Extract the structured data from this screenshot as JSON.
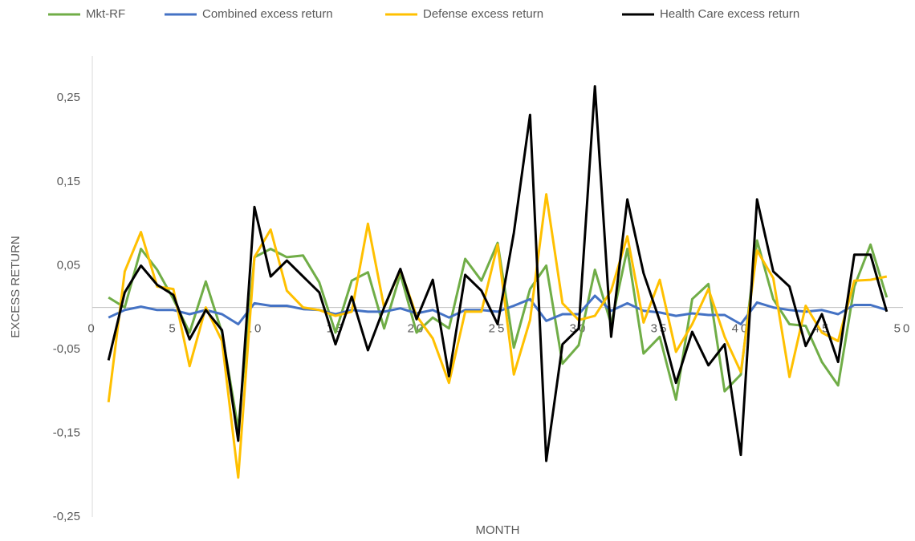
{
  "chart_data": {
    "type": "line",
    "x_label": "MONTH",
    "y_label": "EXCESS RETURN",
    "x": [
      1,
      2,
      3,
      4,
      5,
      6,
      7,
      8,
      9,
      10,
      11,
      12,
      13,
      14,
      15,
      16,
      17,
      18,
      19,
      20,
      21,
      22,
      23,
      24,
      25,
      26,
      27,
      28,
      29,
      30,
      31,
      32,
      33,
      34,
      35,
      36,
      37,
      38,
      39,
      40,
      41,
      42,
      43,
      44,
      45,
      46,
      47,
      48,
      49
    ],
    "series": [
      {
        "name": "Mkt-RF",
        "color": "#70ad47",
        "values": [
          0.012,
          0.0,
          0.07,
          0.045,
          0.01,
          -0.03,
          0.031,
          -0.03,
          -0.145,
          0.06,
          0.07,
          0.06,
          0.062,
          0.03,
          -0.03,
          0.032,
          0.042,
          -0.025,
          0.04,
          -0.03,
          -0.012,
          -0.025,
          0.058,
          0.032,
          0.077,
          -0.048,
          0.022,
          0.05,
          -0.067,
          -0.045,
          0.045,
          -0.02,
          0.07,
          -0.055,
          -0.035,
          -0.11,
          0.01,
          0.028,
          -0.1,
          -0.08,
          0.08,
          0.01,
          -0.02,
          -0.022,
          -0.065,
          -0.093,
          0.025,
          0.075,
          0.012
        ]
      },
      {
        "name": "Combined excess return",
        "color": "#4472c4",
        "values": [
          -0.012,
          -0.003,
          0.001,
          -0.003,
          -0.003,
          -0.008,
          -0.003,
          -0.008,
          -0.02,
          0.005,
          0.002,
          0.002,
          -0.002,
          -0.003,
          -0.008,
          -0.003,
          -0.005,
          -0.005,
          -0.001,
          -0.007,
          -0.003,
          -0.012,
          -0.003,
          -0.003,
          -0.005,
          0.002,
          0.01,
          -0.016,
          -0.008,
          -0.008,
          0.014,
          -0.004,
          0.005,
          -0.004,
          -0.006,
          -0.01,
          -0.007,
          -0.009,
          -0.009,
          -0.02,
          0.006,
          0.0,
          -0.003,
          -0.005,
          -0.003,
          -0.008,
          0.003,
          0.003,
          -0.003
        ]
      },
      {
        "name": "Defense excess return",
        "color": "#ffc000",
        "values": [
          -0.113,
          0.043,
          0.09,
          0.025,
          0.022,
          -0.07,
          0.0,
          -0.04,
          -0.203,
          0.06,
          0.093,
          0.02,
          0.0,
          -0.003,
          -0.01,
          -0.005,
          0.1,
          0.0,
          0.045,
          -0.01,
          -0.037,
          -0.09,
          -0.005,
          -0.005,
          0.075,
          -0.08,
          -0.015,
          0.135,
          0.005,
          -0.015,
          -0.01,
          0.02,
          0.085,
          -0.018,
          0.033,
          -0.053,
          -0.02,
          0.022,
          -0.035,
          -0.077,
          0.068,
          0.035,
          -0.083,
          0.002,
          -0.03,
          -0.04,
          0.032,
          0.033,
          0.037
        ]
      },
      {
        "name": "Health Care excess return",
        "color": "#000000",
        "values": [
          -0.063,
          0.018,
          0.05,
          0.027,
          0.015,
          -0.038,
          -0.003,
          -0.027,
          -0.159,
          0.12,
          0.037,
          0.056,
          0.037,
          0.018,
          -0.044,
          0.013,
          -0.051,
          0.0,
          0.046,
          -0.014,
          0.033,
          -0.082,
          0.039,
          0.02,
          -0.02,
          0.089,
          0.23,
          -0.183,
          -0.044,
          -0.025,
          0.264,
          -0.035,
          0.129,
          0.041,
          -0.016,
          -0.09,
          -0.029,
          -0.069,
          -0.044,
          -0.176,
          0.129,
          0.043,
          0.025,
          -0.046,
          -0.008,
          -0.065,
          0.063,
          0.063,
          -0.005
        ]
      }
    ],
    "xlim": [
      0,
      50
    ],
    "xticks": [
      0,
      5,
      10,
      15,
      20,
      25,
      30,
      35,
      40,
      45,
      50
    ],
    "ylim": [
      -0.25,
      0.3
    ],
    "yticks": [
      {
        "value": -0.25,
        "label": "-0,25"
      },
      {
        "value": -0.15,
        "label": "-0,15"
      },
      {
        "value": -0.05,
        "label": "-0,05"
      },
      {
        "value": 0.05,
        "label": "0,05"
      },
      {
        "value": 0.15,
        "label": "0,15"
      },
      {
        "value": 0.25,
        "label": "0,25"
      }
    ],
    "legend": "top"
  }
}
